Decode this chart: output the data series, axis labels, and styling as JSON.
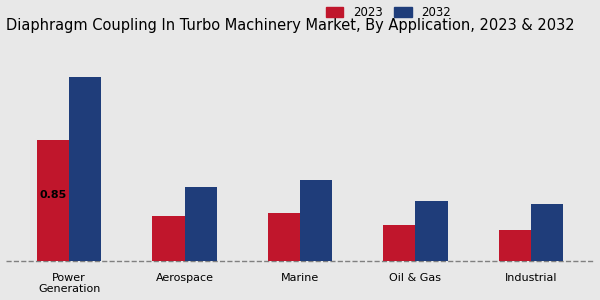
{
  "title": "Diaphragm Coupling In Turbo Machinery Market, By Application, 2023 & 2032",
  "categories": [
    "Power\nGeneration",
    "Aerospace",
    "Marine",
    "Oil & Gas",
    "Industrial"
  ],
  "values_2023": [
    0.85,
    0.32,
    0.34,
    0.25,
    0.22
  ],
  "values_2032": [
    1.3,
    0.52,
    0.57,
    0.42,
    0.4
  ],
  "color_2023": "#c0162c",
  "color_2032": "#1f3d7a",
  "annotation_label": "0.85",
  "background_color": "#e8e8e8",
  "legend_labels": [
    "2023",
    "2032"
  ],
  "bar_width": 0.28,
  "title_fontsize": 10.5,
  "axis_label_fontsize": 8,
  "tick_fontsize": 8,
  "legend_fontsize": 8.5
}
